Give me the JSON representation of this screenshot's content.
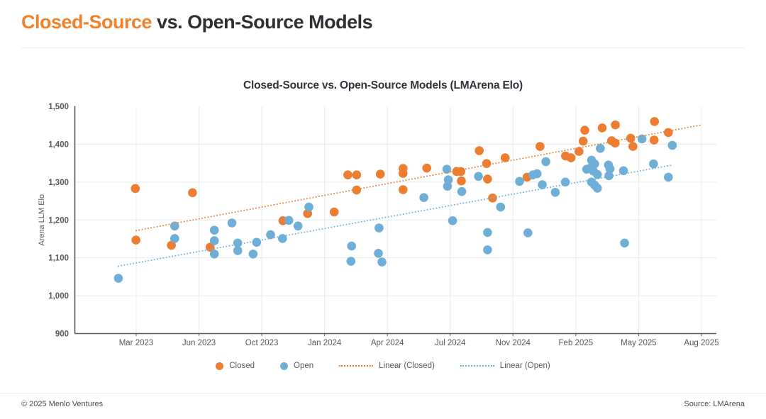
{
  "page": {
    "title_accent": "Closed-Source",
    "title_rest": " vs. Open-Source Models",
    "footer_left": "© 2025 Menlo Ventures",
    "footer_right": "Source: LMArena"
  },
  "colors": {
    "closed": "#ED7D31",
    "open": "#6FAFD7",
    "accent": "#F0822C",
    "axis_text": "#595959",
    "axis_line": "#595959",
    "gridline": "#EAEAEA"
  },
  "chart_data": {
    "type": "scatter",
    "title": "Closed-Source vs. Open-Source Models (LMArena Elo)",
    "ylabel": "Arena LLM Elo",
    "ylim": [
      900,
      1500
    ],
    "grid": true,
    "legend_position": "bottom",
    "x_unit": "months_since_2023-01",
    "y_ticks": [
      {
        "v": 1500,
        "label": "1,500"
      },
      {
        "v": 1400,
        "label": "1,400"
      },
      {
        "v": 1300,
        "label": "1,300"
      },
      {
        "v": 1200,
        "label": "1,200"
      },
      {
        "v": 1100,
        "label": "1,100"
      },
      {
        "v": 1000,
        "label": "1,000"
      },
      {
        "v": 900,
        "label": "900"
      }
    ],
    "x_ticks": [
      {
        "m": 2,
        "label": "Mar 2023"
      },
      {
        "m": 5,
        "label": "Jun 2023"
      },
      {
        "m": 9,
        "label": "Oct 2023"
      },
      {
        "m": 12,
        "label": "Jan 2024"
      },
      {
        "m": 15,
        "label": "Apr 2024"
      },
      {
        "m": 18,
        "label": "Jul 2024"
      },
      {
        "m": 22,
        "label": "Nov 2024"
      },
      {
        "m": 25,
        "label": "Feb 2025"
      },
      {
        "m": 28,
        "label": "May 2025"
      },
      {
        "m": 31,
        "label": "Aug 2025"
      }
    ],
    "series": [
      {
        "name": "Closed",
        "color": "#ED7D31",
        "points_m_elo": [
          [
            1.96,
            1283
          ],
          [
            1.99,
            1147
          ],
          [
            3.68,
            1133
          ],
          [
            4.69,
            1272
          ],
          [
            5.71,
            1128
          ],
          [
            10.01,
            1198
          ],
          [
            11.19,
            1217
          ],
          [
            12.46,
            1221
          ],
          [
            13.11,
            1319
          ],
          [
            13.53,
            1319
          ],
          [
            13.53,
            1279
          ],
          [
            14.66,
            1321
          ],
          [
            15.75,
            1336
          ],
          [
            15.75,
            1323
          ],
          [
            15.75,
            1280
          ],
          [
            16.88,
            1337
          ],
          [
            18.41,
            1328
          ],
          [
            18.68,
            1328
          ],
          [
            18.71,
            1303
          ],
          [
            19.85,
            1383
          ],
          [
            20.32,
            1349
          ],
          [
            20.38,
            1308
          ],
          [
            20.7,
            1258
          ],
          [
            21.5,
            1364
          ],
          [
            22.67,
            1313
          ],
          [
            23.29,
            1394
          ],
          [
            24.51,
            1369
          ],
          [
            24.77,
            1364
          ],
          [
            25.15,
            1381
          ],
          [
            25.35,
            1408
          ],
          [
            25.43,
            1437
          ],
          [
            26.26,
            1443
          ],
          [
            26.71,
            1409
          ],
          [
            26.88,
            1403
          ],
          [
            26.89,
            1451
          ],
          [
            27.62,
            1416
          ],
          [
            27.73,
            1394
          ],
          [
            28.74,
            1411
          ],
          [
            28.76,
            1460
          ],
          [
            29.42,
            1431
          ]
        ]
      },
      {
        "name": "Open",
        "color": "#6FAFD7",
        "points_m_elo": [
          [
            1.15,
            1046
          ],
          [
            3.84,
            1184
          ],
          [
            3.84,
            1151
          ],
          [
            5.98,
            1173
          ],
          [
            5.98,
            1145
          ],
          [
            5.98,
            1110
          ],
          [
            7.1,
            1192
          ],
          [
            7.47,
            1139
          ],
          [
            7.47,
            1119
          ],
          [
            8.45,
            1110
          ],
          [
            8.67,
            1141
          ],
          [
            9.42,
            1161
          ],
          [
            9.99,
            1151
          ],
          [
            10.29,
            1199
          ],
          [
            10.73,
            1184
          ],
          [
            11.25,
            1234
          ],
          [
            13.26,
            1091
          ],
          [
            13.29,
            1131
          ],
          [
            14.57,
            1112
          ],
          [
            14.6,
            1179
          ],
          [
            14.74,
            1089
          ],
          [
            16.74,
            1259
          ],
          [
            17.84,
            1334
          ],
          [
            17.87,
            1289
          ],
          [
            17.91,
            1306
          ],
          [
            18.15,
            1198
          ],
          [
            18.74,
            1275
          ],
          [
            19.8,
            1315
          ],
          [
            20.38,
            1167
          ],
          [
            20.38,
            1121
          ],
          [
            21.21,
            1234
          ],
          [
            22.31,
            1302
          ],
          [
            22.71,
            1166
          ],
          [
            22.95,
            1319
          ],
          [
            23.15,
            1322
          ],
          [
            23.4,
            1293
          ],
          [
            23.57,
            1354
          ],
          [
            24.02,
            1273
          ],
          [
            24.5,
            1300
          ],
          [
            25.52,
            1334
          ],
          [
            25.69,
            1337
          ],
          [
            25.75,
            1358
          ],
          [
            25.75,
            1300
          ],
          [
            25.84,
            1329
          ],
          [
            25.9,
            1348
          ],
          [
            25.9,
            1292
          ],
          [
            26.03,
            1320
          ],
          [
            26.03,
            1284
          ],
          [
            26.17,
            1389
          ],
          [
            26.56,
            1345
          ],
          [
            26.58,
            1317
          ],
          [
            26.63,
            1335
          ],
          [
            27.28,
            1330
          ],
          [
            27.33,
            1139
          ],
          [
            28.16,
            1414
          ],
          [
            28.71,
            1348
          ],
          [
            29.42,
            1313
          ],
          [
            29.61,
            1397
          ]
        ]
      }
    ],
    "trendlines": [
      {
        "name": "Linear (Closed)",
        "color": "#ED7D31",
        "from_m_elo": [
          2,
          1172
        ],
        "to_m_elo": [
          31,
          1451
        ]
      },
      {
        "name": "Linear (Open)",
        "color": "#6FAFD7",
        "from_m_elo": [
          1.15,
          1078
        ],
        "to_m_elo": [
          29.6,
          1345
        ]
      }
    ],
    "legend": [
      {
        "label": "Closed",
        "swatch": "dot",
        "color": "#ED7D31"
      },
      {
        "label": "Open",
        "swatch": "dot",
        "color": "#6FAFD7"
      },
      {
        "label": "Linear (Closed)",
        "swatch": "line",
        "color": "#ED7D31"
      },
      {
        "label": "Linear (Open)",
        "swatch": "line",
        "color": "#6FAFD7"
      }
    ]
  }
}
